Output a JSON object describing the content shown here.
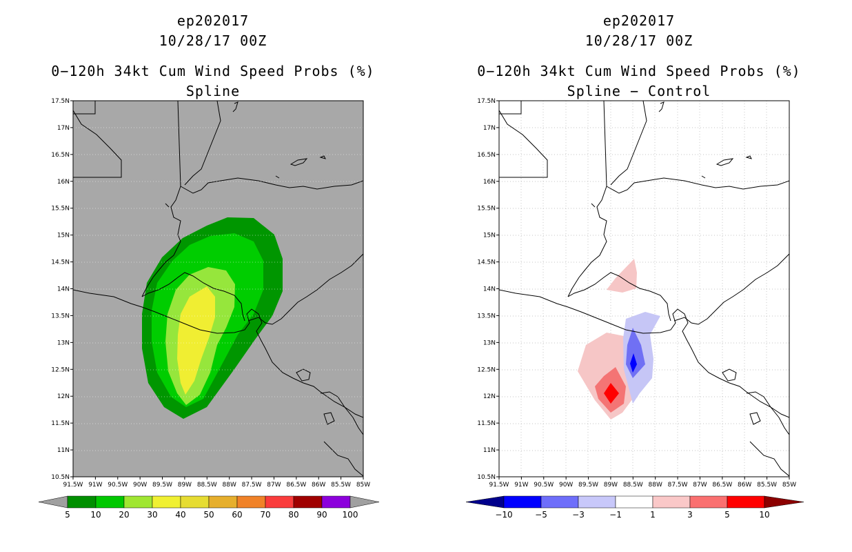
{
  "left": {
    "storm": "ep202017",
    "datetime": "10/28/17 00Z",
    "product": "0−120h 34kt Cum Wind Speed Probs (%)",
    "variant": "Spline",
    "colorbar": {
      "labels": [
        "5",
        "10",
        "20",
        "30",
        "40",
        "50",
        "60",
        "70",
        "80",
        "90",
        "100"
      ],
      "colors": [
        "#008f00",
        "#00c800",
        "#a0e632",
        "#f0f032",
        "#e6dc32",
        "#e6af2d",
        "#f08228",
        "#fa3c3c",
        "#a00000",
        "#8c00dc"
      ],
      "extension_color": "#a0a0a0"
    }
  },
  "right": {
    "storm": "ep202017",
    "datetime": "10/28/17 00Z",
    "product": "0−120h 34kt Cum Wind Speed Probs (%)",
    "variant": "Spline − Control",
    "colorbar": {
      "labels": [
        "−10",
        "−5",
        "−3",
        "−1",
        "1",
        "3",
        "5",
        "10"
      ],
      "colors": [
        "#0000ff",
        "#6e6efa",
        "#c8c8fa",
        "#ffffff",
        "#fac8c8",
        "#fa7070",
        "#ff0000"
      ],
      "low_color": "#00008c",
      "high_color": "#8c0000"
    }
  },
  "axes": {
    "lat_labels": [
      "17.5N",
      "17N",
      "16.5N",
      "16N",
      "15.5N",
      "15N",
      "14.5N",
      "14N",
      "13.5N",
      "13N",
      "12.5N",
      "12N",
      "11.5N",
      "11N",
      "10.5N"
    ],
    "lon_labels": [
      "91.5W",
      "91W",
      "90.5W",
      "90W",
      "89.5W",
      "89W",
      "88.5W",
      "88W",
      "87.5W",
      "87W",
      "86.5W",
      "86W",
      "85.5W",
      "85W"
    ]
  }
}
